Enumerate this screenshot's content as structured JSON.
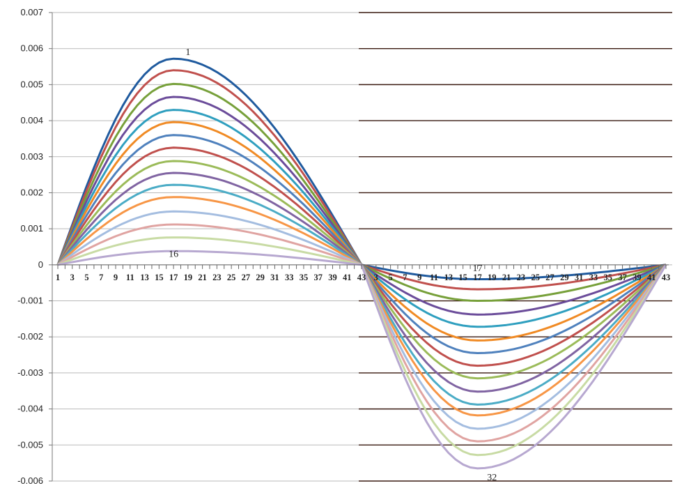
{
  "chart_data": {
    "type": "line",
    "title": "",
    "xlabel": "",
    "ylabel": "",
    "ylim": [
      -0.006,
      0.007
    ],
    "yticks": [
      0.007,
      0.006,
      0.005,
      0.004,
      0.003,
      0.002,
      0.001,
      0,
      -0.001,
      -0.002,
      -0.003,
      -0.004,
      -0.005,
      -0.006
    ],
    "ytick_labels": [
      "0.007",
      "0.006",
      "0.005",
      "0.004",
      "0.003",
      "0.002",
      "0.001",
      "0",
      "-0.001",
      "-0.002",
      "-0.003",
      "-0.004",
      "-0.005",
      "-0.006"
    ],
    "x_points_per_segment": 43,
    "x_tick_labels_left": [
      "1",
      "3",
      "5",
      "7",
      "9",
      "11",
      "13",
      "15",
      "17",
      "19",
      "21",
      "23",
      "25",
      "27",
      "29",
      "31",
      "33",
      "35",
      "37",
      "39",
      "41",
      "43"
    ],
    "x_tick_labels_right": [
      "3",
      "5",
      "7",
      "9",
      "11",
      "13",
      "15",
      "17",
      "19",
      "21",
      "23",
      "25",
      "27",
      "29",
      "31",
      "33",
      "35",
      "37",
      "39",
      "41",
      "43"
    ],
    "grid": "horizontal",
    "legend": "none",
    "annotations": [
      {
        "text": "1",
        "segment": "left",
        "x": 19,
        "y": 0.0059
      },
      {
        "text": "16",
        "segment": "left",
        "x": 17,
        "y": 0.0003
      },
      {
        "text": "17",
        "segment": "right",
        "x": 17,
        "y": -0.0001
      },
      {
        "text": "32",
        "segment": "right",
        "x": 19,
        "y": -0.0059
      }
    ],
    "series_shape": "each series is a half-sine-like arc, peaking near x=17; curves 1-16 positive on the left segment, curves 17-32 negative on the right segment",
    "series": [
      {
        "segment": "left",
        "peak": 0.00572
      },
      {
        "segment": "left",
        "peak": 0.0054
      },
      {
        "segment": "left",
        "peak": 0.00502
      },
      {
        "segment": "left",
        "peak": 0.00466
      },
      {
        "segment": "left",
        "peak": 0.0043
      },
      {
        "segment": "left",
        "peak": 0.00396
      },
      {
        "segment": "left",
        "peak": 0.0036
      },
      {
        "segment": "left",
        "peak": 0.00325
      },
      {
        "segment": "left",
        "peak": 0.00288
      },
      {
        "segment": "left",
        "peak": 0.00255
      },
      {
        "segment": "left",
        "peak": 0.00222
      },
      {
        "segment": "left",
        "peak": 0.00188
      },
      {
        "segment": "left",
        "peak": 0.00148
      },
      {
        "segment": "left",
        "peak": 0.00112
      },
      {
        "segment": "left",
        "peak": 0.00076
      },
      {
        "segment": "left",
        "peak": 0.00038
      },
      {
        "segment": "right",
        "peak": -0.0004
      },
      {
        "segment": "right",
        "peak": -0.00068
      },
      {
        "segment": "right",
        "peak": -0.001
      },
      {
        "segment": "right",
        "peak": -0.00138
      },
      {
        "segment": "right",
        "peak": -0.00172
      },
      {
        "segment": "right",
        "peak": -0.0021
      },
      {
        "segment": "right",
        "peak": -0.00245
      },
      {
        "segment": "right",
        "peak": -0.0028
      },
      {
        "segment": "right",
        "peak": -0.00315
      },
      {
        "segment": "right",
        "peak": -0.00352
      },
      {
        "segment": "right",
        "peak": -0.00388
      },
      {
        "segment": "right",
        "peak": -0.00418
      },
      {
        "segment": "right",
        "peak": -0.00455
      },
      {
        "segment": "right",
        "peak": -0.0049
      },
      {
        "segment": "right",
        "peak": -0.00528
      },
      {
        "segment": "right",
        "peak": -0.00565
      }
    ],
    "colors": [
      "#1f5a9e",
      "#c0504d",
      "#77a03a",
      "#6b4c9a",
      "#2f9fbf",
      "#f08a24",
      "#4f81bd",
      "#c0504d",
      "#9bbb59",
      "#8064a2",
      "#4bacc6",
      "#f79646",
      "#a4bde0",
      "#e0a4a2",
      "#c8dba4",
      "#b7a8d0"
    ]
  }
}
